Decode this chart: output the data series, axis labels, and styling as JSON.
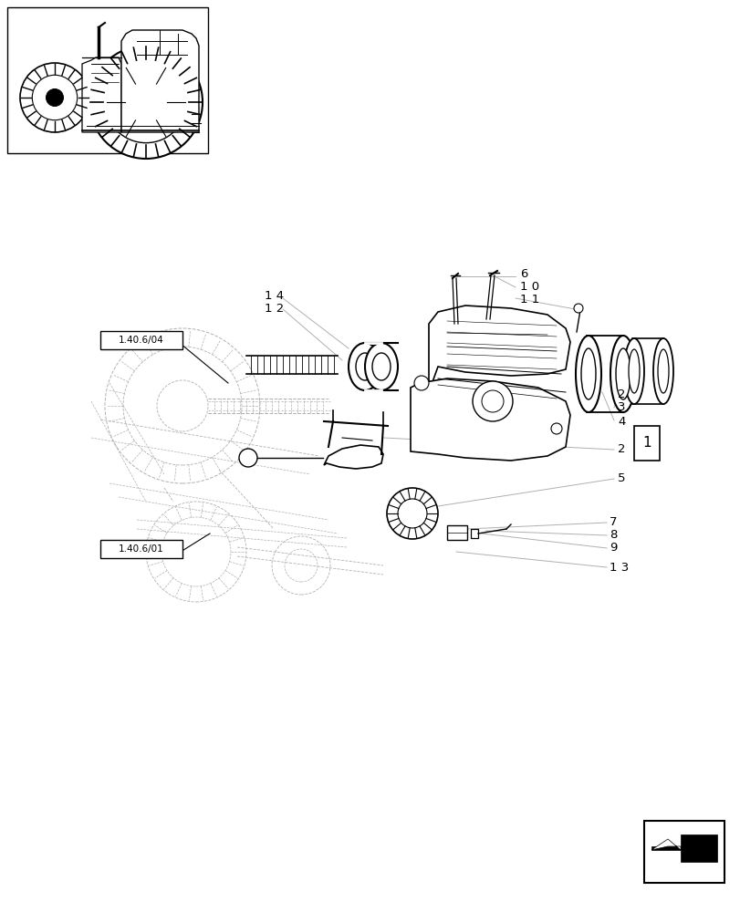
{
  "bg_color": "#ffffff",
  "line_color": "#000000",
  "light_line_color": "#b0b0b0",
  "figure_size": [
    8.12,
    10.0
  ],
  "dpi": 100
}
